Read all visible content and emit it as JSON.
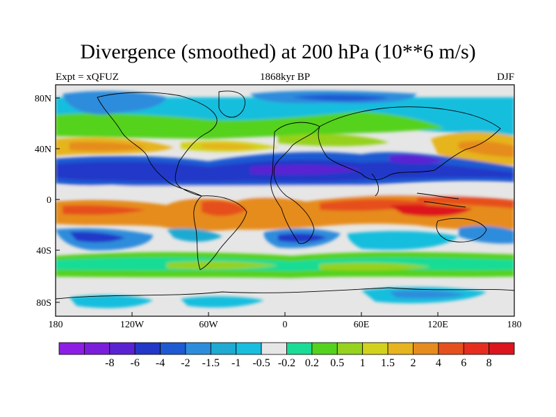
{
  "header": {
    "title": "Divergence (smoothed) at 200 hPa (10**6 m/s)",
    "experiment": "Expt = xQFUZ",
    "period": "1868kyr BP",
    "season": "DJF"
  },
  "map": {
    "lon_ticks": [
      "180",
      "120W",
      "60W",
      "0",
      "60E",
      "120E",
      "180"
    ],
    "lat_ticks": [
      "80N",
      "40N",
      "0",
      "40S",
      "80S"
    ]
  },
  "colorbar": {
    "colors": [
      "#8e1ee6",
      "#7a1edc",
      "#5a23d2",
      "#2337c8",
      "#1e5ad2",
      "#2d8cdc",
      "#1eaad2",
      "#19bede",
      "#e6e6e6",
      "#19dc96",
      "#55d21e",
      "#96d21e",
      "#d2d21e",
      "#e6b41e",
      "#e68c1e",
      "#e6501e",
      "#e62d1e",
      "#dc141e"
    ],
    "labels": [
      "-8",
      "-6",
      "-4",
      "-2",
      "-1.5",
      "-1",
      "-0.5",
      "-0.2",
      "0.2",
      "0.5",
      "1",
      "1.5",
      "2",
      "4",
      "6",
      "8"
    ]
  }
}
